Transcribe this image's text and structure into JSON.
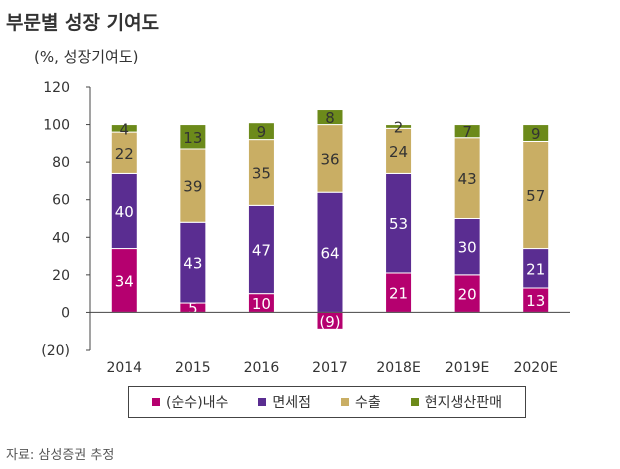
{
  "header": {
    "title": "부문별 성장 기여도",
    "unit": "(%, 성장기여도)",
    "source": "자료: 삼성증권 추정"
  },
  "colors": {
    "domestic": "#b5006f",
    "duty_free": "#5a2d91",
    "export": "#c9ae64",
    "local_sales": "#6c8a1a"
  },
  "chart_data": {
    "type": "bar",
    "stacked": true,
    "categories": [
      "2014",
      "2015",
      "2016",
      "2017",
      "2018E",
      "2019E",
      "2020E"
    ],
    "series": [
      {
        "name": "(순수)내수",
        "values": [
          34,
          5,
          10,
          -9,
          21,
          20,
          13
        ],
        "labels": [
          "34",
          "5",
          "10",
          "(9)",
          "21",
          "20",
          "13"
        ]
      },
      {
        "name": "면세점",
        "values": [
          40,
          43,
          47,
          64,
          53,
          30,
          21
        ],
        "labels": [
          "40",
          "43",
          "47",
          "64",
          "53",
          "30",
          "21"
        ]
      },
      {
        "name": "수출",
        "values": [
          22,
          39,
          35,
          36,
          24,
          43,
          57
        ],
        "labels": [
          "22",
          "39",
          "35",
          "36",
          "24",
          "43",
          "57"
        ]
      },
      {
        "name": "현지생산판매",
        "values": [
          4,
          13,
          9,
          8,
          2,
          7,
          9
        ],
        "labels": [
          "4",
          "13",
          "9",
          "8",
          "2",
          "7",
          "9"
        ]
      }
    ],
    "ylim": [
      -20,
      120
    ],
    "yticks": [
      "(20)",
      "0",
      "20",
      "40",
      "60",
      "80",
      "100",
      "120"
    ],
    "grid": false,
    "legend_position": "bottom"
  }
}
